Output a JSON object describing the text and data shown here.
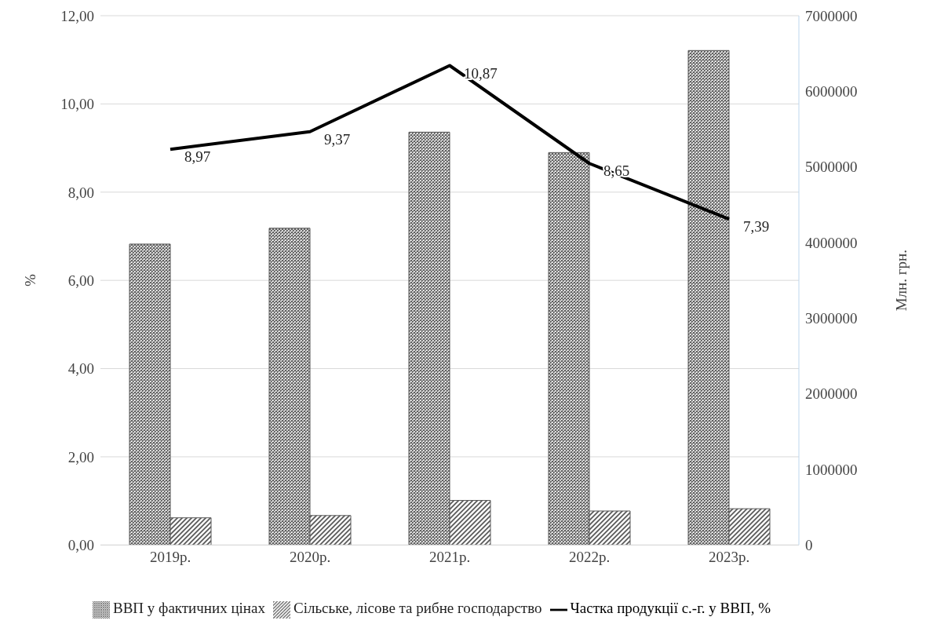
{
  "chart_data": {
    "type": "bar",
    "categories": [
      "2019р.",
      "2020р.",
      "2021р.",
      "2022р.",
      "2023р."
    ],
    "ylabel": "%",
    "y2label": "Млн. грн.",
    "ylim": [
      0,
      12
    ],
    "yticks": [
      {
        "value": 0,
        "label": "0,00"
      },
      {
        "value": 2,
        "label": "2,00"
      },
      {
        "value": 4,
        "label": "4,00"
      },
      {
        "value": 6,
        "label": "6,00"
      },
      {
        "value": 8,
        "label": "8,00"
      },
      {
        "value": 10,
        "label": "10,00"
      },
      {
        "value": 12,
        "label": "12,00"
      }
    ],
    "y2lim": [
      0,
      7000000
    ],
    "y2ticks": [
      0,
      1000000,
      2000000,
      3000000,
      4000000,
      5000000,
      6000000,
      7000000
    ],
    "grid": "y",
    "legend": "bottom",
    "series": [
      {
        "name": "ВВП у фактичних цінах",
        "axis": "y2",
        "color": "#595959",
        "values": [
          3980000,
          4190000,
          5460000,
          5190000,
          6540000
        ]
      },
      {
        "name": "Сільське, лісове та рибне господарство",
        "axis": "y2",
        "color": "#595959",
        "values": [
          360000,
          390000,
          590000,
          450000,
          480000
        ]
      },
      {
        "name": "Частка продукції с.-г. у ВВП, %",
        "type": "line",
        "axis": "y",
        "color": "#000000",
        "values": [
          8.97,
          9.37,
          10.87,
          8.65,
          7.39
        ],
        "value_labels": [
          "8,97",
          "9,37",
          "10,87",
          "8,65",
          "7,39"
        ],
        "marker": "none"
      }
    ]
  }
}
